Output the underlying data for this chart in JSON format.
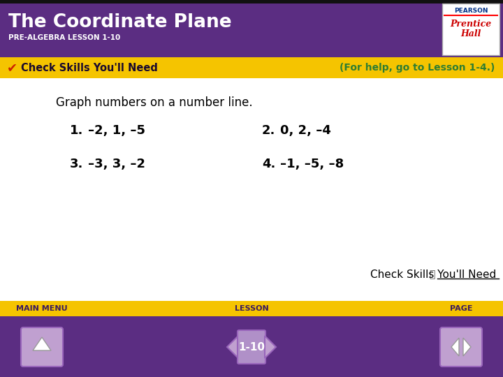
{
  "title": "The Coordinate Plane",
  "subtitle": "PRE-ALGEBRA LESSON 1-10",
  "header_bg_color": "#5b2d82",
  "yellow_bar_color": "#f5c400",
  "check_skills_text": "Check Skills You'll Need",
  "for_help_text": "(For help, go to Lesson 1-4.)",
  "for_help_color": "#2e7d32",
  "main_instruction": "Graph numbers on a number line.",
  "problems": [
    {
      "num": "1.",
      "text": "–2, 1, –5"
    },
    {
      "num": "2.",
      "text": "0, 2, –4"
    },
    {
      "num": "3.",
      "text": "–3, 3, –2"
    },
    {
      "num": "4.",
      "text": "–1, –5, –8"
    }
  ],
  "bottom_nav_bg": "#5b2d82",
  "bottom_nav_yellow": "#f5c400",
  "nav_labels": [
    "MAIN MENU",
    "LESSON",
    "PAGE"
  ],
  "lesson_num": "1-10",
  "check_skills_bottom_text": "Check Skills You'll Need",
  "pearson_text_color": "#003087",
  "prentice_hall_color": "#cc0000"
}
